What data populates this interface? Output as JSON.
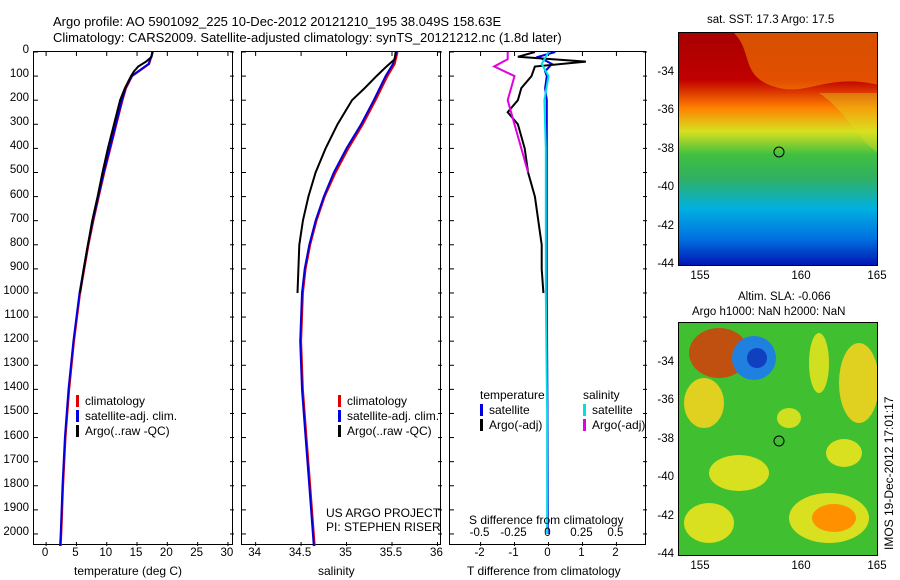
{
  "header": {
    "line1": "Argo profile: AO 5901092_225 10-Dec-2012 20121210_195 38.049S 158.63E",
    "line2": "Climatology: CARS2009. Satellite-adjusted climatology: synTS_20121212.nc (1.8d later)"
  },
  "colors": {
    "climatology": "#e00000",
    "satellite": "#0000e0",
    "argo": "#000000",
    "sal_sat": "#00e0e0",
    "sal_argo": "#e000e0"
  },
  "legend_left": {
    "climatology": "climatology",
    "satellite": "satellite-adj. clim.",
    "argo": "Argo(..raw -QC)"
  },
  "legend_mid": {
    "climatology": "climatology",
    "satellite": "satellite-adj. clim.",
    "argo": "Argo(..raw -QC)"
  },
  "legend_right": {
    "temperature_head": "temperature",
    "salinity_head": "salinity",
    "t_sat": "satellite",
    "t_argo": "Argo(-adj)",
    "s_sat": "satellite",
    "s_argo": "Argo(-adj)"
  },
  "project": {
    "line1": "US ARGO PROJECT",
    "line2": "PI: STEPHEN RISER"
  },
  "map_top": {
    "title": "sat. SST: 17.3 Argo: 17.5"
  },
  "map_bottom": {
    "title1": "Altim. SLA: -0.066",
    "title2": "Argo h1000: NaN h2000: NaN"
  },
  "footer_vertical": "IMOS 19-Dec-2012 17:01:17",
  "chart_data": [
    {
      "type": "line",
      "xlabel": "temperature (deg C)",
      "xticks": [
        0,
        5,
        10,
        15,
        20,
        25,
        30
      ],
      "xlim": [
        -2,
        31
      ],
      "ylim": [
        2050,
        0
      ],
      "yticks": [
        0,
        100,
        200,
        300,
        400,
        500,
        600,
        700,
        800,
        900,
        1000,
        1100,
        1200,
        1300,
        1400,
        1500,
        1600,
        1700,
        1800,
        1900,
        2000
      ],
      "series": [
        {
          "name": "climatology",
          "color": "#e00000",
          "depth": [
            0,
            50,
            100,
            150,
            200,
            300,
            400,
            500,
            600,
            700,
            800,
            900,
            1000,
            1200,
            1400,
            1600,
            1800,
            2000,
            2050
          ],
          "values": [
            17.6,
            17.0,
            14.2,
            13.2,
            12.6,
            11.6,
            10.6,
            9.6,
            8.7,
            7.8,
            7.0,
            6.3,
            5.6,
            4.6,
            3.8,
            3.2,
            2.8,
            2.5,
            2.4
          ]
        },
        {
          "name": "satellite-adj. clim.",
          "color": "#0000e0",
          "depth": [
            0,
            50,
            100,
            150,
            200,
            300,
            400,
            500,
            600,
            700,
            800,
            900,
            1000,
            1200,
            1400,
            1600,
            1800,
            2000,
            2050
          ],
          "values": [
            17.6,
            16.9,
            14.1,
            13.1,
            12.5,
            11.5,
            10.5,
            9.5,
            8.6,
            7.7,
            6.9,
            6.2,
            5.5,
            4.5,
            3.7,
            3.1,
            2.7,
            2.4,
            2.3
          ]
        },
        {
          "name": "Argo(..raw -QC)",
          "color": "#000000",
          "depth": [
            0,
            20,
            40,
            60,
            80,
            100,
            150,
            200,
            300,
            400,
            500,
            600,
            700,
            800,
            900,
            1000
          ],
          "values": [
            17.5,
            17.4,
            16.5,
            15.2,
            14.5,
            14.0,
            13.0,
            12.2,
            11.2,
            10.2,
            9.3,
            8.5,
            7.6,
            6.9,
            6.2,
            5.6
          ]
        }
      ]
    },
    {
      "type": "line",
      "xlabel": "salinity",
      "xticks": [
        34,
        34.5,
        35,
        35.5,
        36
      ],
      "xlim": [
        33.85,
        36.05
      ],
      "ylim": [
        2050,
        0
      ],
      "series": [
        {
          "name": "climatology",
          "color": "#e00000",
          "depth": [
            0,
            50,
            100,
            200,
            300,
            400,
            500,
            600,
            700,
            800,
            900,
            1000,
            1200,
            1400,
            1600,
            1800,
            2000,
            2050
          ],
          "values": [
            35.56,
            35.53,
            35.45,
            35.32,
            35.18,
            35.02,
            34.88,
            34.76,
            34.67,
            34.6,
            34.55,
            34.52,
            34.5,
            34.52,
            34.56,
            34.6,
            34.64,
            34.65
          ]
        },
        {
          "name": "satellite-adj. clim.",
          "color": "#0000e0",
          "depth": [
            0,
            50,
            100,
            200,
            300,
            400,
            500,
            600,
            700,
            800,
            900,
            1000,
            1200,
            1400,
            1600,
            1800,
            2000,
            2050
          ],
          "values": [
            35.55,
            35.51,
            35.43,
            35.3,
            35.16,
            35.0,
            34.86,
            34.75,
            34.66,
            34.59,
            34.54,
            34.51,
            34.49,
            34.51,
            34.55,
            34.59,
            34.63,
            34.64
          ]
        },
        {
          "name": "Argo(..raw -QC)",
          "color": "#000000",
          "depth": [
            0,
            30,
            60,
            100,
            150,
            200,
            300,
            400,
            500,
            600,
            700,
            800,
            900,
            1000
          ],
          "values": [
            35.54,
            35.53,
            35.44,
            35.33,
            35.2,
            35.06,
            34.9,
            34.77,
            34.66,
            34.58,
            34.52,
            34.48,
            34.47,
            34.46
          ]
        }
      ]
    },
    {
      "type": "line",
      "xlabel": "T difference from climatology",
      "xlabel_top": "S difference from climatology",
      "xticks": [
        -2,
        -1,
        0,
        1,
        2
      ],
      "xticks_top": [
        "-0.5",
        "-0.25",
        "0",
        "0.25",
        "0.5"
      ],
      "xlim": [
        -2.9,
        2.9
      ],
      "ylim": [
        2050,
        0
      ],
      "series": [
        {
          "name": "temperature satellite",
          "color": "#0000e0",
          "depth": [
            0,
            20,
            50,
            80,
            100,
            150,
            200,
            300,
            400,
            500,
            700,
            1000,
            1500,
            2000
          ],
          "values": [
            0.2,
            -0.3,
            0.1,
            -0.1,
            -0.05,
            -0.1,
            -0.05,
            -0.05,
            -0.05,
            -0.05,
            -0.05,
            -0.05,
            -0.03,
            -0.02
          ]
        },
        {
          "name": "temperature Argo(-adj)",
          "color": "#000000",
          "depth": [
            0,
            20,
            40,
            60,
            100,
            150,
            200,
            250,
            300,
            400,
            500,
            600,
            700,
            800,
            900,
            1000
          ],
          "values": [
            -0.4,
            -0.9,
            1.1,
            -0.4,
            -0.5,
            -0.8,
            -0.9,
            -1.2,
            -0.9,
            -0.7,
            -0.6,
            -0.4,
            -0.3,
            -0.2,
            -0.2,
            -0.15
          ]
        },
        {
          "name": "salinity satellite",
          "color": "#00e0e0",
          "depth": [
            0,
            50,
            100,
            200,
            400,
            700,
            1000,
            1500,
            2000
          ],
          "values": [
            0.0,
            -0.05,
            0.0,
            -0.03,
            -0.02,
            -0.02,
            -0.02,
            -0.01,
            -0.01
          ]
        },
        {
          "name": "salinity Argo(-adj)",
          "color": "#e000e0",
          "depth": [
            0,
            30,
            60,
            100,
            200,
            300,
            400,
            500
          ],
          "values": [
            -0.3,
            -0.3,
            -0.4,
            -0.25,
            -0.3,
            -0.25,
            -0.2,
            -0.15
          ]
        }
      ]
    }
  ],
  "map_axes": {
    "lon_ticks": [
      "155",
      "160",
      "165"
    ],
    "lat_ticks": [
      "-34",
      "-36",
      "-38",
      "-40",
      "-42",
      "-44"
    ]
  }
}
